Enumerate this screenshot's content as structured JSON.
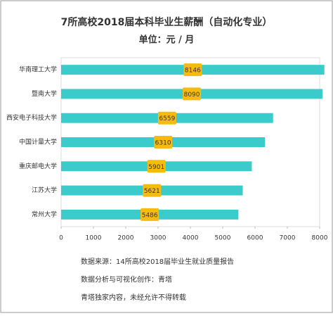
{
  "chart_data": {
    "type": "bar",
    "orientation": "horizontal",
    "title": "7所高校2018届本科毕业生薪酬（自动化专业）",
    "subtitle": "单位：元 / 月",
    "categories": [
      "华南理工大学",
      "暨南大学",
      "西安电子科技大学",
      "中国计量大学",
      "重庆邮电大学",
      "江苏大学",
      "常州大学"
    ],
    "values": [
      8146,
      8090,
      6559,
      6310,
      5901,
      5621,
      5486
    ],
    "color": "#3ccbcb",
    "label_color": "#f7bb0f",
    "xlim": [
      0,
      8000
    ],
    "xticks": [
      0,
      1000,
      2000,
      3000,
      4000,
      5000,
      6000,
      7000,
      8000
    ],
    "notes": [
      "数据来源：14所高校2018届毕业生就业质量报告",
      "数据分析与可视化创作：青塔",
      "青塔独家内容，未经允许不得转载"
    ]
  }
}
